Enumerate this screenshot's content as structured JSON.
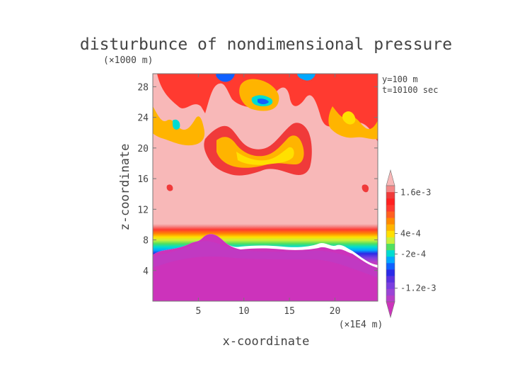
{
  "chart_data": {
    "type": "heatmap",
    "title": "disturbunce of nondimensional pressure",
    "y_unit": "(×1000 m)",
    "x_unit": "(×1E4 m)",
    "xlabel": "x-coordinate",
    "ylabel": "z-coordinate",
    "annotations": [
      "y=100 m",
      "t=10100 sec"
    ],
    "xlim": [
      0,
      24.7
    ],
    "ylim": [
      0,
      29.7
    ],
    "x_ticks": [
      5,
      10,
      15,
      20
    ],
    "y_ticks": [
      4,
      8,
      12,
      16,
      20,
      24,
      28
    ],
    "colorbar": {
      "tick_labels": [
        "1.6e-3",
        "4e-4",
        "-2e-4",
        "-1.2e-3"
      ],
      "tick_values": [
        0.0016,
        0.0004,
        -0.0002,
        -0.0012
      ],
      "extend": "both",
      "levels": [
        {
          "min": null,
          "max": -0.0018,
          "color": "#cc33bb"
        },
        {
          "min": -0.0018,
          "max": -0.0016,
          "color": "#b83ec8"
        },
        {
          "min": -0.0016,
          "max": -0.0014,
          "color": "#9a44d6"
        },
        {
          "min": -0.0014,
          "max": -0.0012,
          "color": "#7a3ee0"
        },
        {
          "min": -0.0012,
          "max": -0.001,
          "color": "#5a30e0"
        },
        {
          "min": -0.001,
          "max": -0.0008,
          "color": "#2a2ae8"
        },
        {
          "min": -0.0008,
          "max": -0.0006,
          "color": "#1060ff"
        },
        {
          "min": -0.0006,
          "max": -0.0004,
          "color": "#00a8ff"
        },
        {
          "min": -0.0004,
          "max": -0.0002,
          "color": "#00dcd0"
        },
        {
          "min": -0.0002,
          "max": 0.0,
          "color": "#50e060"
        },
        {
          "min": 0.0,
          "max": 0.0002,
          "color": "#c8f03c"
        },
        {
          "min": 0.0002,
          "max": 0.0004,
          "color": "#ffe000"
        },
        {
          "min": 0.0004,
          "max": 0.0006,
          "color": "#ffb400"
        },
        {
          "min": 0.0006,
          "max": 0.0008,
          "color": "#ff8a00"
        },
        {
          "min": 0.0008,
          "max": 0.001,
          "color": "#ff6020"
        },
        {
          "min": 0.001,
          "max": 0.0012,
          "color": "#ff3a30"
        },
        {
          "min": 0.0012,
          "max": 0.0014,
          "color": "#ff2020"
        },
        {
          "min": 0.0014,
          "max": 0.0016,
          "color": "#f03a3a"
        },
        {
          "min": 0.0016,
          "max": 0.0018,
          "color": "#f48888"
        },
        {
          "min": 0.0018,
          "max": null,
          "color": "#f8b8b8"
        }
      ]
    },
    "background_fields": [
      {
        "z_range": [
          0,
          5.5
        ],
        "value": -0.0019,
        "desc_color": "#cc33bb"
      },
      {
        "z_range": [
          10.5,
          29.7
        ],
        "value": 0.0019,
        "desc_color": "#f8b8b8"
      }
    ]
  }
}
